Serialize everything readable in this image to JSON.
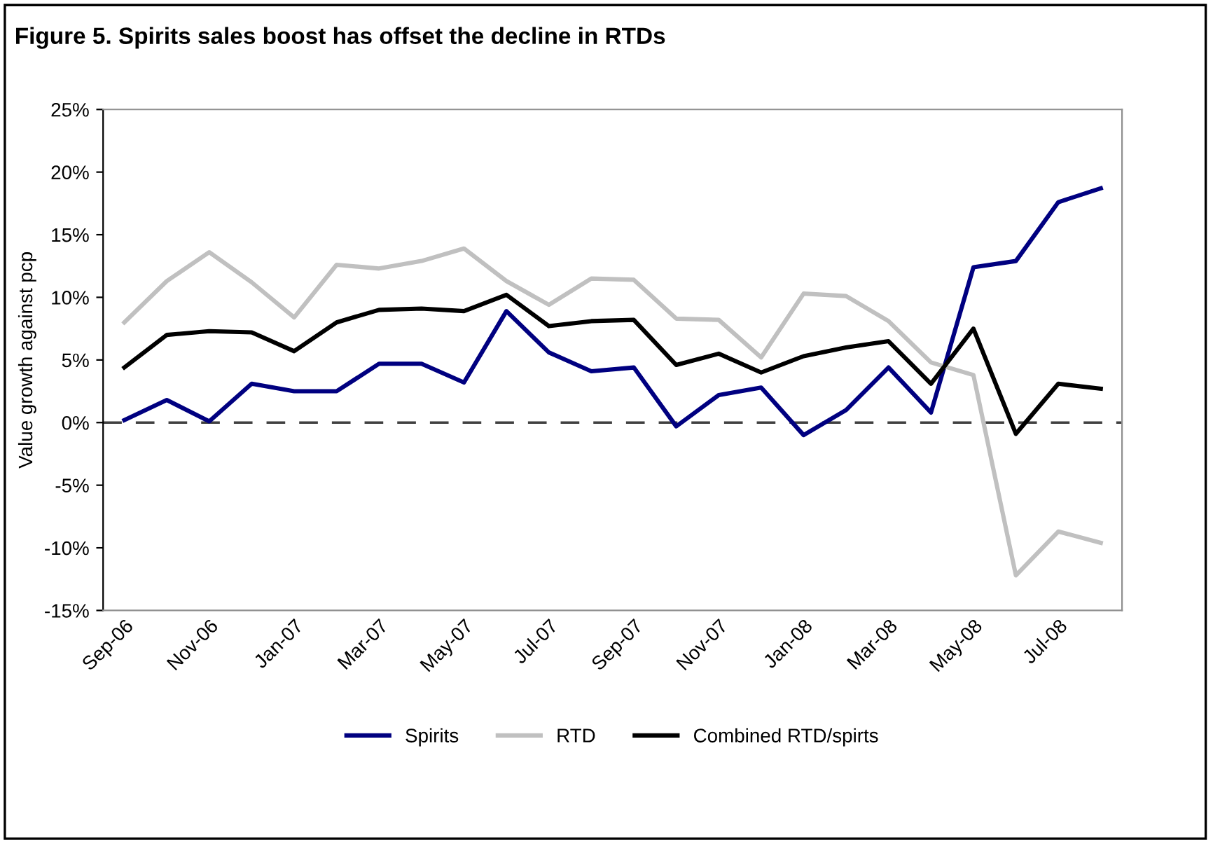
{
  "chart_data": {
    "type": "line",
    "title": "Figure 5. Spirits sales boost has offset the decline in RTDs",
    "ylabel": "Value growth against pcp",
    "categories": [
      "Sep-06",
      null,
      "Nov-06",
      null,
      "Jan-07",
      null,
      "Mar-07",
      null,
      "May-07",
      null,
      "Jul-07",
      null,
      "Sep-07",
      null,
      "Nov-07",
      null,
      "Jan-08",
      null,
      "Mar-08",
      null,
      "May-08",
      null,
      "Jul-08",
      null
    ],
    "series": [
      {
        "name": "Spirits",
        "color": "#000080",
        "values": [
          0.2,
          1.8,
          0.1,
          3.1,
          2.5,
          2.5,
          4.7,
          4.7,
          3.2,
          8.9,
          5.6,
          4.1,
          4.4,
          -0.3,
          2.2,
          2.8,
          -1.0,
          1.0,
          4.4,
          0.8,
          12.4,
          12.9,
          17.6,
          18.7
        ]
      },
      {
        "name": "RTD",
        "color": "#c0c0c0",
        "values": [
          8.0,
          11.3,
          13.6,
          11.2,
          8.4,
          12.6,
          12.3,
          12.9,
          13.9,
          11.3,
          9.4,
          11.5,
          11.4,
          8.3,
          8.2,
          5.2,
          10.3,
          10.1,
          8.1,
          4.8,
          3.8,
          -12.2,
          -8.7,
          -9.6
        ]
      },
      {
        "name": "Combined RTD/spirts",
        "color": "#000000",
        "values": [
          4.4,
          7.0,
          7.3,
          7.2,
          5.7,
          8.0,
          9.0,
          9.1,
          8.9,
          10.2,
          7.7,
          8.1,
          8.2,
          4.6,
          5.5,
          4.0,
          5.3,
          6.0,
          6.5,
          3.1,
          7.5,
          -0.9,
          3.1,
          2.7
        ]
      }
    ],
    "ylim": [
      -15,
      25
    ],
    "yticks": [
      {
        "value": -15,
        "label": "-15%"
      },
      {
        "value": -10,
        "label": "-10%"
      },
      {
        "value": -5,
        "label": "-5%"
      },
      {
        "value": 0,
        "label": "0%"
      },
      {
        "value": 5,
        "label": "5%"
      },
      {
        "value": 10,
        "label": "10%"
      },
      {
        "value": 15,
        "label": "15%"
      },
      {
        "value": 20,
        "label": "20%"
      },
      {
        "value": 25,
        "label": "25%"
      }
    ],
    "ref_lines": [
      {
        "axis": "y",
        "value": 0,
        "color": "#404040",
        "line_style": "dashed"
      }
    ],
    "grid": false,
    "legend": "bottom",
    "marker": "none",
    "line_style": "solid"
  }
}
